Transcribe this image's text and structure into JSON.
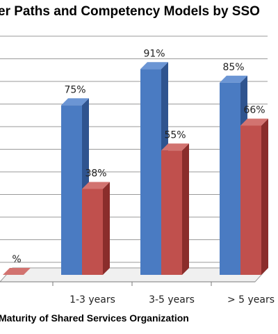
{
  "chart_data": {
    "type": "bar",
    "title": "er Paths and Competency Models by SSO",
    "xlabel": "Maturity of Shared Services Organization",
    "ylabel": "",
    "categories": [
      "",
      "1-3 years",
      "3-5 years",
      "> 5 years"
    ],
    "series": [
      {
        "values": [
          null,
          75,
          91,
          85
        ],
        "labels": [
          "",
          "75%",
          "91%",
          "85%"
        ],
        "color": "#4a7bc2",
        "side_color": "#2f548f",
        "top_color": "#6b95d4"
      },
      {
        "values": [
          0,
          38,
          55,
          66
        ],
        "labels": [
          "%",
          "38%",
          "55%",
          "66%"
        ],
        "color": "#c0504d",
        "side_color": "#8a2d2b",
        "top_color": "#d27370"
      }
    ],
    "ylim": [
      0,
      100
    ],
    "grid": true,
    "legend": "none"
  }
}
